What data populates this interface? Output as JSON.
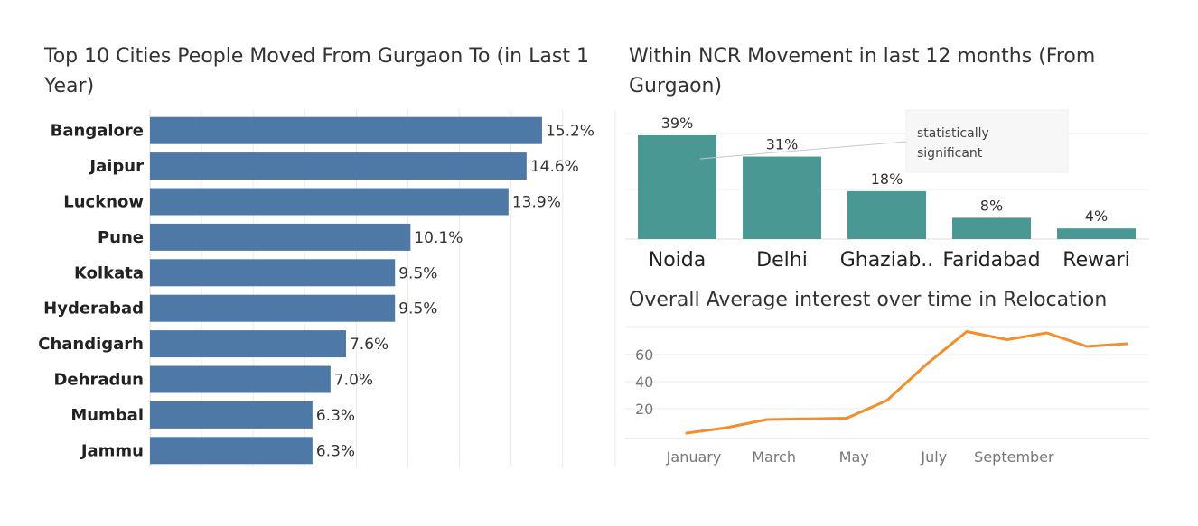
{
  "colors": {
    "bar1": "#4e79a7",
    "bar2": "#499894",
    "line": "#f28e2b",
    "grid": "#ebebeb"
  },
  "chart_data": [
    {
      "type": "bar",
      "orientation": "horizontal",
      "title": "Top 10 Cities People Moved From Gurgaon To (in Last 1 Year)",
      "categories": [
        "Bangalore",
        "Jaipur",
        "Lucknow",
        "Pune",
        "Kolkata",
        "Hyderabad",
        "Chandigarh",
        "Dehradun",
        "Mumbai",
        "Jammu"
      ],
      "values": [
        15.2,
        14.6,
        13.9,
        10.1,
        9.5,
        9.5,
        7.6,
        7.0,
        6.3,
        6.3
      ],
      "value_labels": [
        "15.2%",
        "14.6%",
        "13.9%",
        "10.1%",
        "9.5%",
        "9.5%",
        "7.6%",
        "7.0%",
        "6.3%",
        "6.3%"
      ],
      "grid": true
    },
    {
      "type": "bar",
      "orientation": "vertical",
      "title": "Within NCR Movement in last 12 months (From Gurgaon)",
      "categories": [
        "Noida",
        "Delhi",
        "Ghaziab..",
        "Faridabad",
        "Rewari"
      ],
      "values": [
        39,
        31,
        18,
        8,
        4
      ],
      "value_labels": [
        "39%",
        "31%",
        "18%",
        "8%",
        "4%"
      ],
      "annotation": {
        "text_lines": [
          "statistically",
          "significant"
        ],
        "target": "Noida"
      },
      "grid": true
    },
    {
      "type": "line",
      "title": "Overall Average interest over time in Relocation",
      "x": [
        1,
        2,
        3,
        4,
        5,
        6,
        7,
        8,
        9,
        10,
        11,
        12
      ],
      "values": [
        2,
        6,
        12,
        12.5,
        13,
        26,
        53,
        77,
        71,
        76,
        66,
        68
      ],
      "xticks": [
        {
          "pos": 1,
          "label": "January"
        },
        {
          "pos": 3,
          "label": "March"
        },
        {
          "pos": 5,
          "label": "May"
        },
        {
          "pos": 7,
          "label": "July"
        },
        {
          "pos": 9,
          "label": "September"
        }
      ],
      "yticks": [
        20,
        40,
        60
      ],
      "ylim": [
        0,
        82
      ],
      "grid": true
    }
  ]
}
